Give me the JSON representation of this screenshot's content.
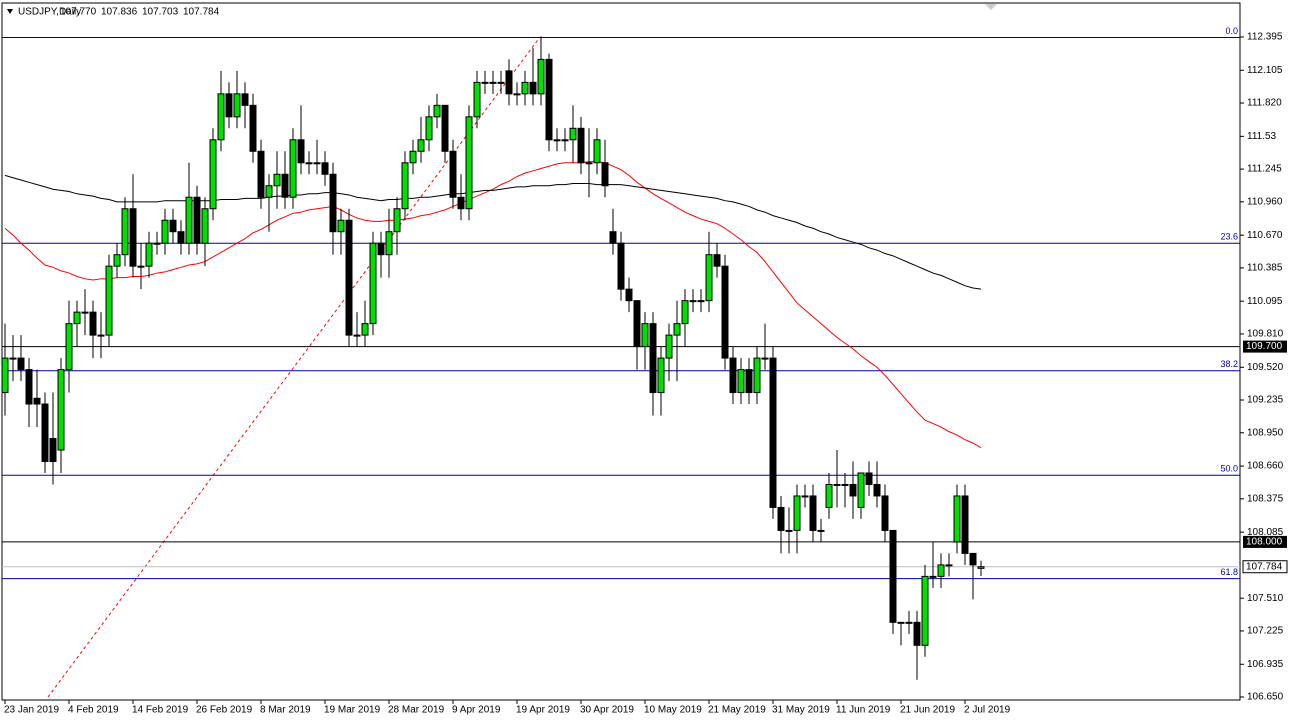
{
  "chart_data": {
    "type": "candlestick",
    "title": "USDJPY,Daily",
    "header_prices": [
      {
        "value": 107.77,
        "label": "107.770"
      },
      {
        "value": 107.836,
        "label": "107.836"
      },
      {
        "value": 107.703,
        "label": "107.703"
      },
      {
        "value": 107.784,
        "label": "107.784"
      }
    ],
    "bull_color": "#00e000",
    "bear_color": "#000000",
    "ylim": [
      106.624,
      112.682
    ],
    "yticks": [
      112.395,
      112.105,
      {
        "value": 111.82,
        "label": "111.820"
      },
      111.53,
      111.245,
      {
        "value": 110.96,
        "label": "110.960"
      },
      {
        "value": 110.67,
        "label": "110.670"
      },
      110.385,
      110.095,
      {
        "value": 109.81,
        "label": "109.810"
      },
      {
        "value": 109.52,
        "label": "109.520"
      },
      109.235,
      {
        "value": 108.95,
        "label": "108.950"
      },
      {
        "value": 108.66,
        "label": "108.660"
      },
      108.375,
      108.085,
      {
        "value": 107.51,
        "label": "107.510"
      },
      107.225,
      106.935,
      {
        "value": 106.65,
        "label": "106.650"
      }
    ],
    "fib_levels": [
      {
        "value": 112.39,
        "label": "0.0",
        "color": "#0000aa"
      },
      {
        "value": 110.6,
        "label": "23.6",
        "color": "#0000aa"
      },
      {
        "value": 109.49,
        "label": "38.2",
        "color": "#0000aa"
      },
      {
        "value": 108.58,
        "label": "50.0",
        "color": "#0000aa"
      },
      {
        "value": 107.68,
        "label": "61.8",
        "color": "#0000aa"
      }
    ],
    "price_levels": [
      {
        "value": 109.7,
        "label": "109.700"
      },
      {
        "value": 108.0,
        "label": "108.000"
      }
    ],
    "categories": [
      "23 Jan 2019",
      null,
      null,
      null,
      null,
      null,
      null,
      null,
      "4 Feb 2019",
      null,
      null,
      null,
      null,
      null,
      null,
      null,
      "14 Feb 2019",
      null,
      null,
      null,
      null,
      null,
      null,
      null,
      "26 Feb 2019",
      null,
      null,
      null,
      null,
      null,
      null,
      null,
      "8 Mar 2019",
      null,
      null,
      null,
      null,
      null,
      null,
      null,
      "19 Mar 2019",
      null,
      null,
      null,
      null,
      null,
      null,
      null,
      "28 Mar 2019",
      null,
      null,
      null,
      null,
      null,
      null,
      null,
      "9 Apr 2019",
      null,
      null,
      null,
      null,
      null,
      null,
      null,
      "19 Apr 2019",
      null,
      null,
      null,
      null,
      null,
      null,
      null,
      "30 Apr 2019",
      null,
      null,
      null,
      null,
      null,
      null,
      null,
      "10 May 2019",
      null,
      null,
      null,
      null,
      null,
      null,
      null,
      "21 May 2019",
      null,
      null,
      null,
      null,
      null,
      null,
      null,
      "31 May 2019",
      null,
      null,
      null,
      null,
      null,
      null,
      null,
      "11 Jun 2019",
      null,
      null,
      null,
      null,
      null,
      null,
      null,
      "21 Jun 2019",
      null,
      null,
      null,
      null,
      null,
      null,
      null,
      "2 Jul 2019",
      null,
      null
    ],
    "ohlc": [
      [
        109.3,
        109.9,
        109.1,
        109.6
      ],
      [
        109.6,
        109.8,
        109.4,
        109.6
      ],
      [
        109.6,
        109.8,
        109.4,
        109.5
      ],
      [
        109.5,
        109.6,
        109.0,
        109.2
      ],
      [
        109.25,
        109.5,
        109.0,
        109.2
      ],
      [
        109.2,
        109.3,
        108.6,
        108.7
      ],
      [
        108.9,
        109.3,
        108.5,
        108.7
      ],
      [
        108.8,
        109.6,
        108.6,
        109.5
      ],
      [
        109.5,
        110.1,
        109.3,
        109.9
      ],
      [
        109.9,
        110.1,
        109.7,
        110.0
      ],
      [
        110.0,
        110.2,
        109.8,
        110.0
      ],
      [
        110.0,
        110.1,
        109.6,
        109.8
      ],
      [
        109.8,
        110.0,
        109.6,
        109.8
      ],
      [
        109.8,
        110.5,
        109.7,
        110.4
      ],
      [
        110.4,
        110.6,
        110.3,
        110.5
      ],
      [
        110.5,
        111.0,
        110.4,
        110.9
      ],
      [
        110.9,
        111.2,
        110.3,
        110.4
      ],
      [
        110.4,
        110.6,
        110.2,
        110.4
      ],
      [
        110.4,
        110.7,
        110.3,
        110.6
      ],
      [
        110.6,
        110.7,
        110.5,
        110.6
      ],
      [
        110.6,
        110.9,
        110.5,
        110.8
      ],
      [
        110.8,
        110.9,
        110.6,
        110.7
      ],
      [
        110.7,
        110.8,
        110.5,
        110.6
      ],
      [
        110.6,
        111.3,
        110.5,
        111.0
      ],
      [
        111.0,
        111.1,
        110.5,
        110.6
      ],
      [
        110.6,
        111.0,
        110.4,
        110.9
      ],
      [
        110.9,
        111.6,
        110.8,
        111.5
      ],
      [
        111.5,
        112.1,
        111.4,
        111.9
      ],
      [
        111.9,
        112.0,
        111.6,
        111.7
      ],
      [
        111.7,
        112.1,
        111.6,
        111.9
      ],
      [
        111.9,
        112.0,
        111.6,
        111.8
      ],
      [
        111.8,
        111.9,
        111.3,
        111.4
      ],
      [
        111.4,
        111.5,
        110.9,
        111.0
      ],
      [
        111.0,
        111.2,
        110.7,
        111.1
      ],
      [
        111.1,
        111.4,
        110.9,
        111.2
      ],
      [
        111.2,
        111.4,
        110.9,
        111.0
      ],
      [
        111.0,
        111.6,
        110.9,
        111.5
      ],
      [
        111.5,
        111.8,
        111.2,
        111.3
      ],
      [
        111.3,
        111.4,
        111.2,
        111.3
      ],
      [
        111.3,
        111.5,
        111.2,
        111.3
      ],
      [
        111.3,
        111.4,
        111.1,
        111.2
      ],
      [
        111.2,
        111.3,
        110.5,
        110.7
      ],
      [
        110.7,
        110.9,
        110.5,
        110.8
      ],
      [
        110.8,
        110.9,
        109.7,
        109.8
      ],
      [
        109.8,
        110.0,
        109.7,
        109.8
      ],
      [
        109.8,
        110.1,
        109.7,
        109.9
      ],
      [
        109.9,
        110.7,
        109.8,
        110.6
      ],
      [
        110.6,
        110.7,
        110.3,
        110.5
      ],
      [
        110.5,
        110.9,
        110.3,
        110.7
      ],
      [
        110.7,
        111.0,
        110.5,
        110.9
      ],
      [
        110.9,
        111.4,
        110.8,
        111.3
      ],
      [
        111.3,
        111.5,
        111.2,
        111.4
      ],
      [
        111.4,
        111.7,
        111.3,
        111.5
      ],
      [
        111.5,
        111.8,
        111.4,
        111.7
      ],
      [
        111.7,
        111.9,
        111.6,
        111.8
      ],
      [
        111.8,
        111.8,
        111.3,
        111.4
      ],
      [
        111.4,
        111.5,
        110.9,
        111.0
      ],
      [
        111.0,
        111.2,
        110.8,
        110.9
      ],
      [
        110.9,
        111.8,
        110.8,
        111.7
      ],
      [
        111.7,
        112.1,
        111.6,
        112.0
      ],
      [
        112.0,
        112.1,
        111.9,
        112.0
      ],
      [
        112.0,
        112.1,
        111.9,
        112.0
      ],
      [
        112.0,
        112.1,
        111.9,
        112.0
      ],
      [
        112.1,
        112.2,
        111.8,
        111.9
      ],
      [
        111.9,
        112.0,
        111.8,
        111.9
      ],
      [
        111.9,
        112.1,
        111.8,
        112.0
      ],
      [
        112.0,
        112.3,
        111.8,
        111.9
      ],
      [
        111.9,
        112.4,
        111.8,
        112.2
      ],
      [
        112.2,
        112.25,
        111.4,
        111.5
      ],
      [
        111.5,
        111.6,
        111.4,
        111.5
      ],
      [
        111.5,
        111.6,
        111.4,
        111.5
      ],
      [
        111.5,
        111.8,
        111.3,
        111.6
      ],
      [
        111.6,
        111.7,
        111.2,
        111.3
      ],
      [
        111.3,
        111.6,
        111.0,
        111.3
      ],
      [
        111.3,
        111.6,
        111.2,
        111.5
      ],
      [
        111.3,
        111.5,
        111.0,
        111.1
      ],
      [
        110.7,
        110.9,
        110.5,
        110.6
      ],
      [
        110.6,
        110.7,
        110.1,
        110.2
      ],
      [
        110.2,
        110.3,
        110.0,
        110.1
      ],
      [
        110.1,
        110.1,
        109.5,
        109.7
      ],
      [
        109.7,
        110.0,
        109.5,
        109.9
      ],
      [
        109.9,
        110.0,
        109.1,
        109.3
      ],
      [
        109.3,
        109.7,
        109.1,
        109.6
      ],
      [
        109.6,
        109.9,
        109.4,
        109.8
      ],
      [
        109.8,
        110.1,
        109.4,
        109.9
      ],
      [
        109.9,
        110.2,
        109.7,
        110.1
      ],
      [
        110.1,
        110.2,
        110.0,
        110.1
      ],
      [
        110.1,
        110.2,
        110.0,
        110.1
      ],
      [
        110.1,
        110.7,
        110.0,
        110.5
      ],
      [
        110.5,
        110.6,
        110.3,
        110.4
      ],
      [
        110.4,
        110.5,
        109.5,
        109.6
      ],
      [
        109.6,
        109.7,
        109.2,
        109.3
      ],
      [
        109.3,
        109.6,
        109.2,
        109.5
      ],
      [
        109.5,
        109.6,
        109.2,
        109.3
      ],
      [
        109.3,
        109.7,
        109.2,
        109.6
      ],
      [
        109.6,
        109.9,
        109.5,
        109.6
      ],
      [
        109.6,
        109.7,
        108.2,
        108.3
      ],
      [
        108.3,
        108.4,
        107.9,
        108.1
      ],
      [
        108.1,
        108.3,
        107.9,
        108.1
      ],
      [
        108.1,
        108.5,
        107.9,
        108.4
      ],
      [
        108.4,
        108.5,
        108.3,
        108.4
      ],
      [
        108.4,
        108.5,
        108.0,
        108.1
      ],
      [
        108.1,
        108.2,
        108.0,
        108.1
      ],
      [
        108.3,
        108.6,
        108.2,
        108.5
      ],
      [
        108.5,
        108.8,
        108.3,
        108.5
      ],
      [
        108.5,
        108.6,
        108.3,
        108.5
      ],
      [
        108.5,
        108.7,
        108.2,
        108.4
      ],
      [
        108.3,
        108.6,
        108.2,
        108.6
      ],
      [
        108.6,
        108.7,
        108.4,
        108.5
      ],
      [
        108.5,
        108.7,
        108.3,
        108.4
      ],
      [
        108.4,
        108.5,
        108.0,
        108.1
      ],
      [
        108.1,
        108.1,
        107.2,
        107.3
      ],
      [
        107.3,
        107.3,
        107.1,
        107.3
      ],
      [
        107.3,
        107.4,
        107.2,
        107.3
      ],
      [
        107.3,
        107.4,
        106.8,
        107.1
      ],
      [
        107.1,
        107.8,
        107.0,
        107.7
      ],
      [
        107.7,
        108.0,
        107.6,
        107.7
      ],
      [
        107.7,
        107.9,
        107.6,
        107.8
      ],
      [
        107.8,
        107.9,
        107.7,
        107.8
      ],
      [
        108.0,
        108.5,
        107.9,
        108.4
      ],
      [
        108.4,
        108.5,
        107.8,
        107.9
      ],
      [
        107.9,
        107.9,
        107.5,
        107.8
      ],
      [
        107.77,
        107.836,
        107.703,
        107.784
      ]
    ],
    "series": [
      {
        "color": "#ff0000",
        "values": [
          110.73,
          110.67,
          110.6,
          110.54,
          110.47,
          110.41,
          110.39,
          110.36,
          110.34,
          110.31,
          110.29,
          110.28,
          110.29,
          110.29,
          110.3,
          110.3,
          110.31,
          110.31,
          110.32,
          110.34,
          110.35,
          110.37,
          110.39,
          110.41,
          110.42,
          110.44,
          110.48,
          110.52,
          110.56,
          110.6,
          110.64,
          110.69,
          110.72,
          110.76,
          110.8,
          110.83,
          110.86,
          110.87,
          110.89,
          110.9,
          110.91,
          110.92,
          110.89,
          110.85,
          110.82,
          110.8,
          110.79,
          110.79,
          110.8,
          110.8,
          110.81,
          110.82,
          110.84,
          110.85,
          110.87,
          110.89,
          110.92,
          110.95,
          110.98,
          111.01,
          111.04,
          111.07,
          111.11,
          111.14,
          111.18,
          111.21,
          111.23,
          111.25,
          111.27,
          111.29,
          111.3,
          111.3,
          111.3,
          111.31,
          111.31,
          111.3,
          111.27,
          111.24,
          111.19,
          111.13,
          111.08,
          111.03,
          110.99,
          110.95,
          110.91,
          110.87,
          110.84,
          110.81,
          110.79,
          110.77,
          110.73,
          110.68,
          110.63,
          110.57,
          110.52,
          110.44,
          110.35,
          110.26,
          110.17,
          110.08,
          110.02,
          109.96,
          109.9,
          109.84,
          109.78,
          109.73,
          109.68,
          109.62,
          109.57,
          109.52,
          109.45,
          109.37,
          109.29,
          109.21,
          109.13,
          109.06,
          109.03,
          109.0,
          108.96,
          108.93,
          108.89,
          108.86,
          108.82
        ]
      },
      {
        "color": "#000000",
        "values": [
          111.19,
          111.17,
          111.15,
          111.13,
          111.11,
          111.09,
          111.07,
          111.06,
          111.05,
          111.03,
          111.02,
          111.01,
          110.99,
          110.98,
          110.96,
          110.96,
          110.96,
          110.96,
          110.96,
          110.96,
          110.97,
          110.97,
          110.97,
          110.97,
          110.97,
          110.97,
          110.97,
          110.98,
          110.98,
          110.98,
          110.99,
          110.99,
          110.99,
          111.0,
          111.01,
          111.01,
          111.02,
          111.02,
          111.03,
          111.03,
          111.04,
          111.04,
          111.03,
          111.02,
          111.0,
          110.99,
          110.98,
          110.97,
          110.98,
          110.98,
          110.99,
          110.99,
          111.0,
          111.0,
          111.01,
          111.02,
          111.03,
          111.03,
          111.04,
          111.05,
          111.06,
          111.06,
          111.07,
          111.08,
          111.09,
          111.09,
          111.1,
          111.1,
          111.1,
          111.11,
          111.11,
          111.12,
          111.12,
          111.12,
          111.11,
          111.11,
          111.11,
          111.11,
          111.1,
          111.09,
          111.08,
          111.07,
          111.06,
          111.05,
          111.04,
          111.03,
          111.02,
          111.01,
          111.0,
          110.99,
          110.97,
          110.96,
          110.94,
          110.92,
          110.89,
          110.87,
          110.84,
          110.82,
          110.8,
          110.78,
          110.75,
          110.73,
          110.7,
          110.68,
          110.65,
          110.63,
          110.61,
          110.59,
          110.56,
          110.54,
          110.51,
          110.49,
          110.46,
          110.43,
          110.4,
          110.37,
          110.34,
          110.32,
          110.29,
          110.26,
          110.23,
          110.21,
          110.2
        ]
      }
    ]
  }
}
